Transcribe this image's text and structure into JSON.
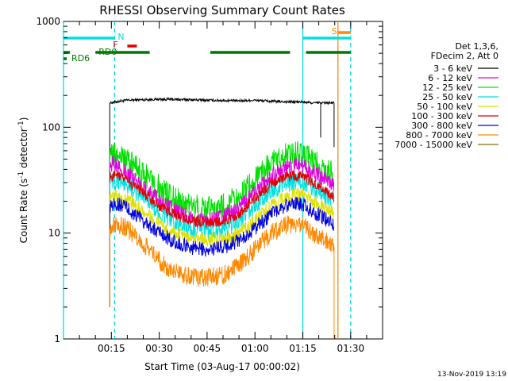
{
  "chart_data": {
    "type": "line",
    "title": "RHESSI Observing Summary Count Rates",
    "xlabel": "Start Time (03-Aug-17 00:00:02)",
    "ylabel": "Count Rate (s",
    "ylabel_sup": "-1",
    "ylabel_tail": " detector",
    "ylabel_end": ")",
    "yscale": "log",
    "ylim": [
      1,
      1000
    ],
    "xlim_min": [
      0,
      100
    ],
    "y_ticks": [
      {
        "v": 1,
        "label": "1"
      },
      {
        "v": 10,
        "label": "10"
      },
      {
        "v": 100,
        "label": "100"
      },
      {
        "v": 1000,
        "label": "1000"
      }
    ],
    "x_ticks": [
      {
        "v": 15,
        "label": "00:15"
      },
      {
        "v": 30,
        "label": "00:30"
      },
      {
        "v": 45,
        "label": "00:45"
      },
      {
        "v": 60,
        "label": "01:00"
      },
      {
        "v": 75,
        "label": "01:15"
      },
      {
        "v": 90,
        "label": "01:30"
      }
    ],
    "legend_header": [
      "Det 1,3,6,",
      "FDecim 2, Att 0"
    ],
    "legend_position": "right",
    "series": [
      {
        "name": "3 - 6 keV",
        "color": "#000000",
        "values": [
          [
            14.5,
            170
          ],
          [
            17,
            175
          ],
          [
            20,
            180
          ],
          [
            25,
            182
          ],
          [
            30,
            184
          ],
          [
            35,
            183
          ],
          [
            40,
            182
          ],
          [
            45,
            180
          ],
          [
            50,
            179
          ],
          [
            55,
            178
          ],
          [
            60,
            180
          ],
          [
            65,
            176
          ],
          [
            70,
            174
          ],
          [
            75,
            173
          ],
          [
            78,
            170
          ],
          [
            84.8,
            170
          ]
        ]
      },
      {
        "name": "6 - 12 keV",
        "color": "#e000e0",
        "values": [
          [
            14.5,
            45
          ],
          [
            17,
            44
          ],
          [
            20,
            36
          ],
          [
            25,
            27
          ],
          [
            30,
            20
          ],
          [
            35,
            16
          ],
          [
            40,
            14
          ],
          [
            45,
            13
          ],
          [
            50,
            14
          ],
          [
            55,
            17
          ],
          [
            60,
            24
          ],
          [
            65,
            34
          ],
          [
            70,
            42
          ],
          [
            75,
            44
          ],
          [
            78,
            38
          ],
          [
            84.8,
            28
          ]
        ]
      },
      {
        "name": "12 - 25 keV",
        "color": "#00e000",
        "values": [
          [
            14.5,
            55
          ],
          [
            17,
            55
          ],
          [
            20,
            48
          ],
          [
            25,
            37
          ],
          [
            30,
            27
          ],
          [
            35,
            21
          ],
          [
            40,
            18
          ],
          [
            45,
            17
          ],
          [
            50,
            18
          ],
          [
            55,
            22
          ],
          [
            60,
            32
          ],
          [
            65,
            46
          ],
          [
            70,
            55
          ],
          [
            75,
            57
          ],
          [
            78,
            48
          ],
          [
            84.8,
            35
          ]
        ]
      },
      {
        "name": "25 - 50 keV",
        "color": "#00e0e0",
        "values": [
          [
            14.5,
            30
          ],
          [
            17,
            31
          ],
          [
            20,
            28
          ],
          [
            25,
            22
          ],
          [
            30,
            16
          ],
          [
            35,
            13
          ],
          [
            40,
            11
          ],
          [
            45,
            10.5
          ],
          [
            50,
            11
          ],
          [
            55,
            13
          ],
          [
            60,
            18
          ],
          [
            65,
            25
          ],
          [
            70,
            30
          ],
          [
            75,
            31
          ],
          [
            78,
            27
          ],
          [
            84.8,
            20
          ]
        ]
      },
      {
        "name": "50 - 100 keV",
        "color": "#e0e000",
        "values": [
          [
            14.5,
            22
          ],
          [
            17,
            22
          ],
          [
            20,
            20
          ],
          [
            25,
            16
          ],
          [
            30,
            12
          ],
          [
            35,
            10
          ],
          [
            40,
            9
          ],
          [
            45,
            8.5
          ],
          [
            50,
            9
          ],
          [
            55,
            10
          ],
          [
            60,
            13
          ],
          [
            65,
            18
          ],
          [
            70,
            22
          ],
          [
            75,
            23
          ],
          [
            78,
            20
          ],
          [
            84.8,
            15
          ]
        ]
      },
      {
        "name": "100 - 300 keV",
        "color": "#e00000",
        "values": [
          [
            14.5,
            34
          ],
          [
            17,
            35
          ],
          [
            20,
            31
          ],
          [
            25,
            24
          ],
          [
            30,
            18
          ],
          [
            35,
            15
          ],
          [
            40,
            13
          ],
          [
            45,
            12.5
          ],
          [
            50,
            13
          ],
          [
            55,
            15
          ],
          [
            60,
            21
          ],
          [
            65,
            29
          ],
          [
            70,
            34
          ],
          [
            75,
            35
          ],
          [
            78,
            30
          ],
          [
            84.8,
            22
          ]
        ]
      },
      {
        "name": "300 - 800 keV",
        "color": "#0000e0",
        "values": [
          [
            14.5,
            18
          ],
          [
            17,
            19
          ],
          [
            20,
            17
          ],
          [
            25,
            13
          ],
          [
            30,
            10
          ],
          [
            35,
            8.2
          ],
          [
            40,
            7.3
          ],
          [
            45,
            7
          ],
          [
            50,
            7.3
          ],
          [
            55,
            8.5
          ],
          [
            60,
            11
          ],
          [
            65,
            15
          ],
          [
            70,
            18.5
          ],
          [
            75,
            19
          ],
          [
            78,
            16
          ],
          [
            84.8,
            12
          ]
        ]
      },
      {
        "name": "800 - 7000 keV",
        "color": "#ff8800",
        "values": [
          [
            14.5,
            11
          ],
          [
            17,
            12
          ],
          [
            20,
            11
          ],
          [
            25,
            8
          ],
          [
            30,
            5.5
          ],
          [
            35,
            4.2
          ],
          [
            40,
            3.9
          ],
          [
            45,
            3.8
          ],
          [
            50,
            4
          ],
          [
            55,
            5
          ],
          [
            60,
            7
          ],
          [
            65,
            10
          ],
          [
            70,
            12
          ],
          [
            75,
            12.5
          ],
          [
            78,
            10
          ],
          [
            84.8,
            7.5
          ]
        ]
      },
      {
        "name": "7000 - 15000 keV",
        "color": "#8b6914",
        "values": []
      }
    ],
    "flags": [
      {
        "label": "N",
        "color": "#00e0e0",
        "segments": [
          [
            0,
            16
          ],
          [
            75,
            90
          ]
        ]
      },
      {
        "label": "F",
        "color": "#e00000",
        "segments": [
          [
            20,
            23
          ]
        ]
      },
      {
        "label": "S",
        "color": "#ff8800",
        "segments": [
          [
            86,
            90
          ]
        ]
      },
      {
        "label": "RD0",
        "color": "#007700",
        "segments": [
          [
            0,
            2
          ],
          [
            10,
            27
          ],
          [
            46,
            71
          ],
          [
            76,
            90
          ]
        ]
      },
      {
        "label": "RD6",
        "color": "#007700",
        "segments": [
          [
            0,
            1
          ]
        ]
      }
    ],
    "vlines": [
      {
        "v": 0,
        "color": "#00e0e0",
        "dashed": false
      },
      {
        "v": 16,
        "color": "#00e0e0",
        "dashed": true
      },
      {
        "v": 75,
        "color": "#00e0e0",
        "dashed": false
      },
      {
        "v": 86,
        "color": "#ff8800",
        "dashed": false
      },
      {
        "v": 90,
        "color": "#00e0e0",
        "dashed": true
      }
    ]
  },
  "footer": {
    "timestamp": "13-Nov-2019 13:19"
  }
}
